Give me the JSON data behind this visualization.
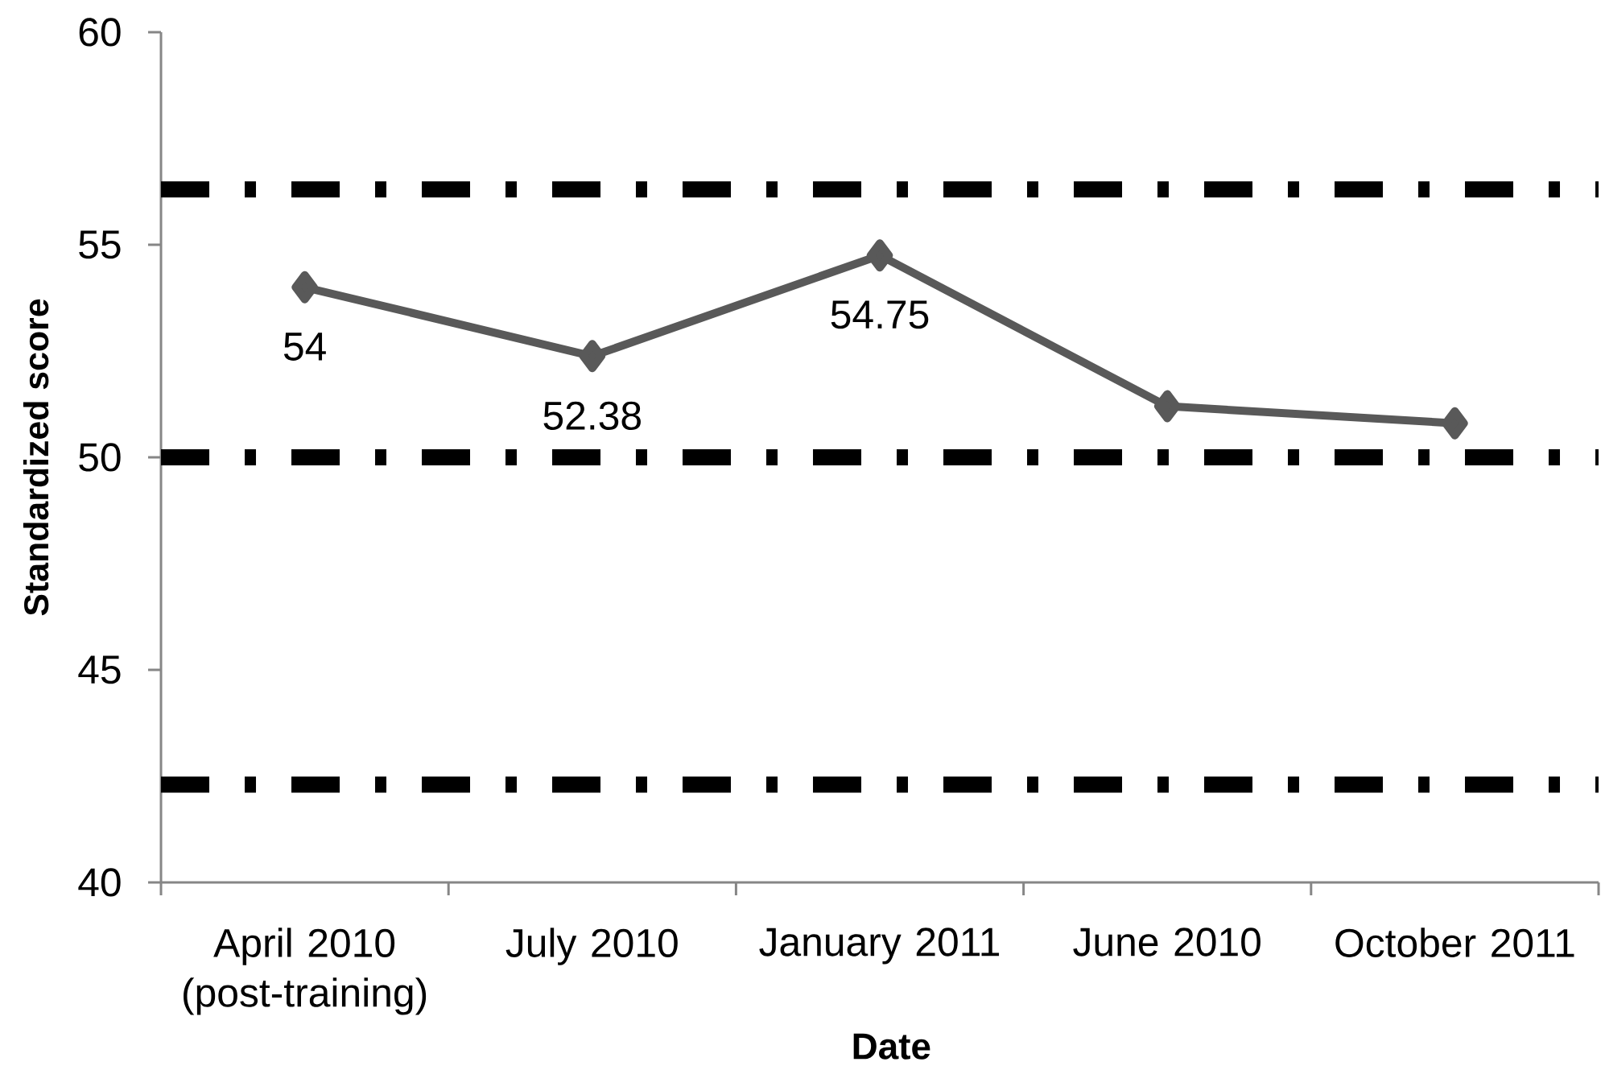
{
  "chart_data": {
    "type": "line",
    "xlabel": "Date",
    "ylabel": "Standardized score",
    "categories": [
      "April 2010 (post-training)",
      "July 2010",
      "January 2011",
      "June 2010",
      "October 2011"
    ],
    "series": [
      {
        "color": "#595959",
        "values": [
          54,
          52.38,
          54.75,
          51.2,
          50.8
        ],
        "value_labels": [
          "54",
          "52.38",
          "54.75",
          null,
          null
        ]
      }
    ],
    "ylim": [
      40,
      60
    ],
    "yticks": [
      40,
      45,
      50,
      55,
      60
    ],
    "marker": "diamond",
    "line_style": "solid",
    "ref_lines": [
      {
        "axis": "y",
        "value": 56.3,
        "color": "#000000",
        "line_style": "dashdot"
      },
      {
        "axis": "y",
        "value": 50,
        "color": "#000000",
        "line_style": "dashdot"
      },
      {
        "axis": "y",
        "value": 42.3,
        "color": "#000000",
        "line_style": "dashdot"
      }
    ]
  }
}
